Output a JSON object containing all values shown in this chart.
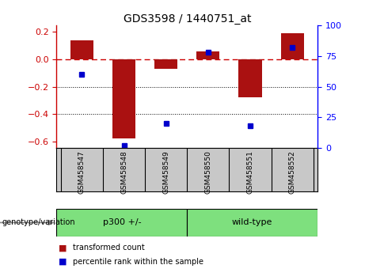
{
  "title": "GDS3598 / 1440751_at",
  "samples": [
    "GSM458547",
    "GSM458548",
    "GSM458549",
    "GSM458550",
    "GSM458551",
    "GSM458552"
  ],
  "red_bars": [
    0.14,
    -0.58,
    -0.07,
    0.06,
    -0.28,
    0.19
  ],
  "blue_dots_pct": [
    60,
    2,
    20,
    78,
    18,
    82
  ],
  "ylim_left": [
    -0.65,
    0.25
  ],
  "ylim_right": [
    0,
    100
  ],
  "yticks_left": [
    -0.6,
    -0.4,
    -0.2,
    0.0,
    0.2
  ],
  "yticks_right": [
    0,
    25,
    50,
    75,
    100
  ],
  "group1_label": "p300 +/-",
  "group2_label": "wild-type",
  "group_color": "#7EE07E",
  "group_label_text": "genotype/variation",
  "legend_red": "transformed count",
  "legend_blue": "percentile rank within the sample",
  "bar_color": "#AA1111",
  "dot_color": "#0000CC",
  "ref_line_color": "#CC0000",
  "bg_color": "#FFFFFF",
  "label_area_color": "#C8C8C8"
}
